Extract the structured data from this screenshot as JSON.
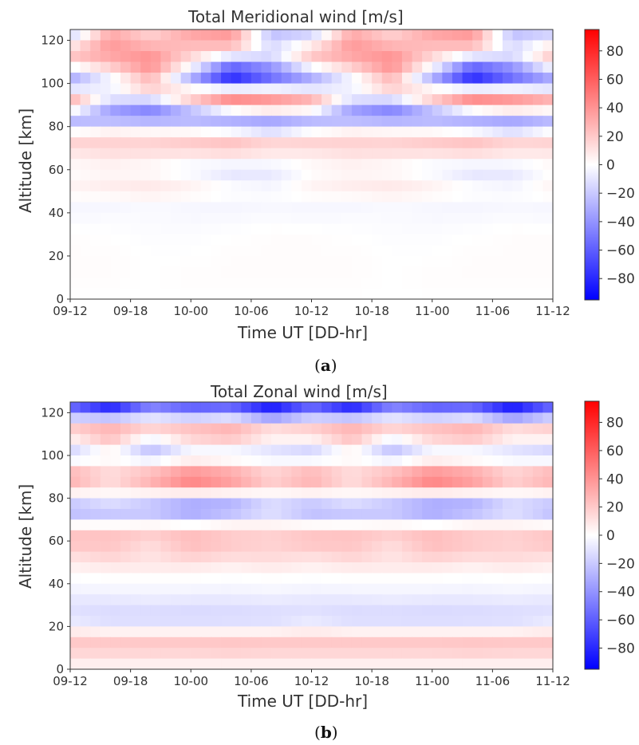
{
  "chart_data": [
    {
      "type": "heatmap",
      "title": "Total Meridional wind [m/s]",
      "xlabel": "Time UT [DD-hr]",
      "ylabel": "Altitude [km]",
      "caption": "a",
      "x_ticks": [
        "09-12",
        "09-18",
        "10-00",
        "10-06",
        "10-12",
        "10-18",
        "11-00",
        "11-06",
        "11-12"
      ],
      "y_ticks": [
        "0",
        "20",
        "40",
        "60",
        "80",
        "100",
        "120"
      ],
      "ylim": [
        0,
        125
      ],
      "colorbar_ticks": [
        "80",
        "60",
        "40",
        "20",
        "0",
        "−20",
        "−40",
        "−60",
        "−80"
      ],
      "colorbar_range": [
        -95,
        95
      ],
      "colormap": "bwr",
      "colors": {
        "negative": "#0000ff",
        "zero": "#ffffff",
        "positive": "#ff0000"
      },
      "x_hours": [
        0,
        4,
        8,
        12,
        16,
        20,
        24,
        28,
        32,
        36,
        40,
        44,
        48
      ],
      "altitudes_km": [
        0,
        10,
        20,
        30,
        40,
        45,
        50,
        55,
        60,
        65,
        70,
        75,
        80,
        85,
        90,
        95,
        100,
        105,
        110,
        115,
        120,
        125
      ],
      "values_ms": [
        [
          0,
          0,
          0,
          0,
          0,
          0,
          0,
          0,
          0,
          0,
          0,
          0,
          0
        ],
        [
          1,
          1,
          0,
          1,
          1,
          1,
          1,
          1,
          0,
          1,
          1,
          1,
          1
        ],
        [
          1,
          1,
          0,
          0,
          1,
          1,
          1,
          1,
          0,
          0,
          1,
          1,
          1
        ],
        [
          1,
          0,
          -1,
          -1,
          0,
          1,
          1,
          0,
          -1,
          -1,
          0,
          1,
          1
        ],
        [
          -3,
          -2,
          -2,
          -3,
          -3,
          -2,
          -3,
          -2,
          -2,
          -3,
          -3,
          -2,
          -3
        ],
        [
          -3,
          -4,
          -2,
          -3,
          -4,
          -3,
          -3,
          -4,
          -2,
          -3,
          -4,
          -3,
          -3
        ],
        [
          5,
          8,
          10,
          6,
          2,
          0,
          5,
          8,
          10,
          6,
          2,
          0,
          5
        ],
        [
          3,
          5,
          6,
          3,
          -5,
          -8,
          3,
          5,
          6,
          3,
          -5,
          -8,
          3
        ],
        [
          0,
          3,
          0,
          -6,
          -12,
          -8,
          0,
          3,
          0,
          -6,
          -12,
          -8,
          0
        ],
        [
          5,
          8,
          6,
          3,
          5,
          2,
          5,
          8,
          6,
          3,
          5,
          2,
          5
        ],
        [
          12,
          15,
          16,
          18,
          20,
          14,
          12,
          15,
          16,
          18,
          20,
          14,
          12
        ],
        [
          20,
          18,
          16,
          20,
          24,
          16,
          20,
          18,
          16,
          20,
          24,
          16,
          20
        ],
        [
          -20,
          -8,
          -10,
          -15,
          -28,
          -40,
          -20,
          -8,
          -10,
          -15,
          -28,
          -40,
          -20
        ],
        [
          -30,
          -40,
          -45,
          -35,
          -30,
          -25,
          -30,
          -40,
          -45,
          -35,
          -30,
          -25,
          -30
        ],
        [
          35,
          -30,
          -45,
          -10,
          30,
          40,
          35,
          -30,
          -45,
          -10,
          30,
          40,
          35
        ],
        [
          20,
          5,
          15,
          45,
          55,
          35,
          20,
          5,
          15,
          45,
          55,
          35,
          20
        ],
        [
          -40,
          -15,
          20,
          -40,
          -70,
          -45,
          -40,
          -15,
          20,
          -40,
          -70,
          -45,
          -40
        ],
        [
          -20,
          10,
          35,
          -15,
          -85,
          -60,
          -20,
          10,
          35,
          -15,
          -85,
          -60,
          -20
        ],
        [
          15,
          25,
          45,
          10,
          -30,
          -20,
          15,
          25,
          45,
          10,
          -30,
          -20,
          15
        ],
        [
          25,
          40,
          35,
          20,
          10,
          -10,
          25,
          40,
          35,
          20,
          10,
          -10,
          25
        ],
        [
          -10,
          35,
          20,
          30,
          40,
          -20,
          -10,
          35,
          20,
          30,
          40,
          -20,
          -10
        ],
        [
          -20,
          30,
          15,
          35,
          35,
          -25,
          -20,
          30,
          15,
          35,
          35,
          -25,
          -20
        ]
      ]
    },
    {
      "type": "heatmap",
      "title": "Total Zonal wind [m/s]",
      "xlabel": "Time UT [DD-hr]",
      "ylabel": "Altitude [km]",
      "caption": "b",
      "x_ticks": [
        "09-12",
        "09-18",
        "10-00",
        "10-06",
        "10-12",
        "10-18",
        "11-00",
        "11-06",
        "11-12"
      ],
      "y_ticks": [
        "0",
        "20",
        "40",
        "60",
        "80",
        "100",
        "120"
      ],
      "ylim": [
        0,
        125
      ],
      "colorbar_ticks": [
        "80",
        "60",
        "40",
        "20",
        "0",
        "−20",
        "−40",
        "−60",
        "−80"
      ],
      "colorbar_range": [
        -95,
        95
      ],
      "colormap": "bwr",
      "colors": {
        "negative": "#0000ff",
        "zero": "#ffffff",
        "positive": "#ff0000"
      },
      "x_hours": [
        0,
        4,
        8,
        12,
        16,
        20,
        24,
        28,
        32,
        36,
        40,
        44,
        48
      ],
      "altitudes_km": [
        0,
        5,
        10,
        15,
        20,
        25,
        30,
        35,
        40,
        45,
        50,
        55,
        60,
        65,
        70,
        75,
        80,
        85,
        90,
        95,
        100,
        105,
        110,
        115,
        120,
        125
      ],
      "values_ms": [
        [
          2,
          2,
          2,
          2,
          2,
          2,
          2,
          2,
          2,
          2,
          2,
          2,
          2
        ],
        [
          10,
          10,
          10,
          10,
          10,
          10,
          10,
          10,
          10,
          10,
          10,
          10,
          10
        ],
        [
          20,
          20,
          20,
          20,
          22,
          20,
          20,
          20,
          20,
          20,
          22,
          20,
          20
        ],
        [
          20,
          20,
          20,
          20,
          20,
          20,
          20,
          20,
          20,
          20,
          20,
          20,
          20
        ],
        [
          -5,
          -10,
          -10,
          -10,
          -10,
          -10,
          -5,
          -10,
          -10,
          -10,
          -10,
          -10,
          -5
        ],
        [
          -10,
          -14,
          -14,
          -15,
          -14,
          -13,
          -10,
          -14,
          -14,
          -15,
          -14,
          -13,
          -10
        ],
        [
          -12,
          -12,
          -11,
          -12,
          -12,
          -11,
          -12,
          -12,
          -11,
          -12,
          -12,
          -11,
          -12
        ],
        [
          -5,
          -5,
          -4,
          -5,
          -5,
          -4,
          -5,
          -5,
          -4,
          -5,
          -5,
          -4,
          -5
        ],
        [
          -3,
          -2,
          -3,
          -2,
          -3,
          -2,
          -3,
          -2,
          -3,
          -2,
          -3,
          -2,
          -3
        ],
        [
          2,
          3,
          4,
          3,
          2,
          3,
          2,
          3,
          4,
          3,
          2,
          3,
          2
        ],
        [
          8,
          12,
          10,
          12,
          8,
          12,
          8,
          12,
          10,
          12,
          8,
          12,
          8
        ],
        [
          15,
          20,
          10,
          22,
          18,
          15,
          15,
          20,
          10,
          22,
          18,
          15,
          15
        ],
        [
          25,
          22,
          15,
          25,
          20,
          18,
          25,
          22,
          15,
          25,
          20,
          18,
          25
        ],
        [
          18,
          22,
          20,
          24,
          18,
          16,
          18,
          22,
          20,
          24,
          18,
          16,
          18
        ],
        [
          -15,
          -20,
          -15,
          -25,
          -10,
          -8,
          -15,
          -20,
          -15,
          -25,
          -10,
          -8,
          -15
        ],
        [
          -30,
          -20,
          -25,
          -35,
          -35,
          -15,
          -30,
          -20,
          -25,
          -35,
          -35,
          -15,
          -30
        ],
        [
          -10,
          -5,
          -15,
          -25,
          -20,
          -10,
          -10,
          -5,
          -15,
          -25,
          -20,
          -10,
          -10
        ],
        [
          20,
          10,
          25,
          40,
          30,
          15,
          20,
          10,
          25,
          40,
          30,
          15,
          20
        ],
        [
          35,
          15,
          30,
          50,
          40,
          20,
          35,
          15,
          30,
          50,
          40,
          20,
          35
        ],
        [
          15,
          10,
          15,
          25,
          20,
          10,
          15,
          10,
          15,
          25,
          20,
          10,
          15
        ],
        [
          -20,
          -5,
          -25,
          -10,
          -15,
          -15,
          -20,
          -5,
          -25,
          -10,
          -15,
          -15,
          -20
        ],
        [
          -10,
          15,
          -20,
          5,
          10,
          -5,
          -10,
          15,
          -20,
          5,
          10,
          -5,
          -10
        ],
        [
          20,
          30,
          10,
          25,
          30,
          15,
          20,
          30,
          10,
          25,
          30,
          15,
          20
        ],
        [
          15,
          25,
          20,
          20,
          25,
          10,
          15,
          25,
          20,
          20,
          25,
          10,
          15
        ],
        [
          -50,
          -70,
          -40,
          -55,
          -50,
          -80,
          -50,
          -70,
          -40,
          -55,
          -50,
          -80,
          -50
        ],
        [
          -60,
          -90,
          -50,
          -60,
          -60,
          -90,
          -60,
          -90,
          -50,
          -60,
          -60,
          -90,
          -60
        ]
      ]
    }
  ]
}
